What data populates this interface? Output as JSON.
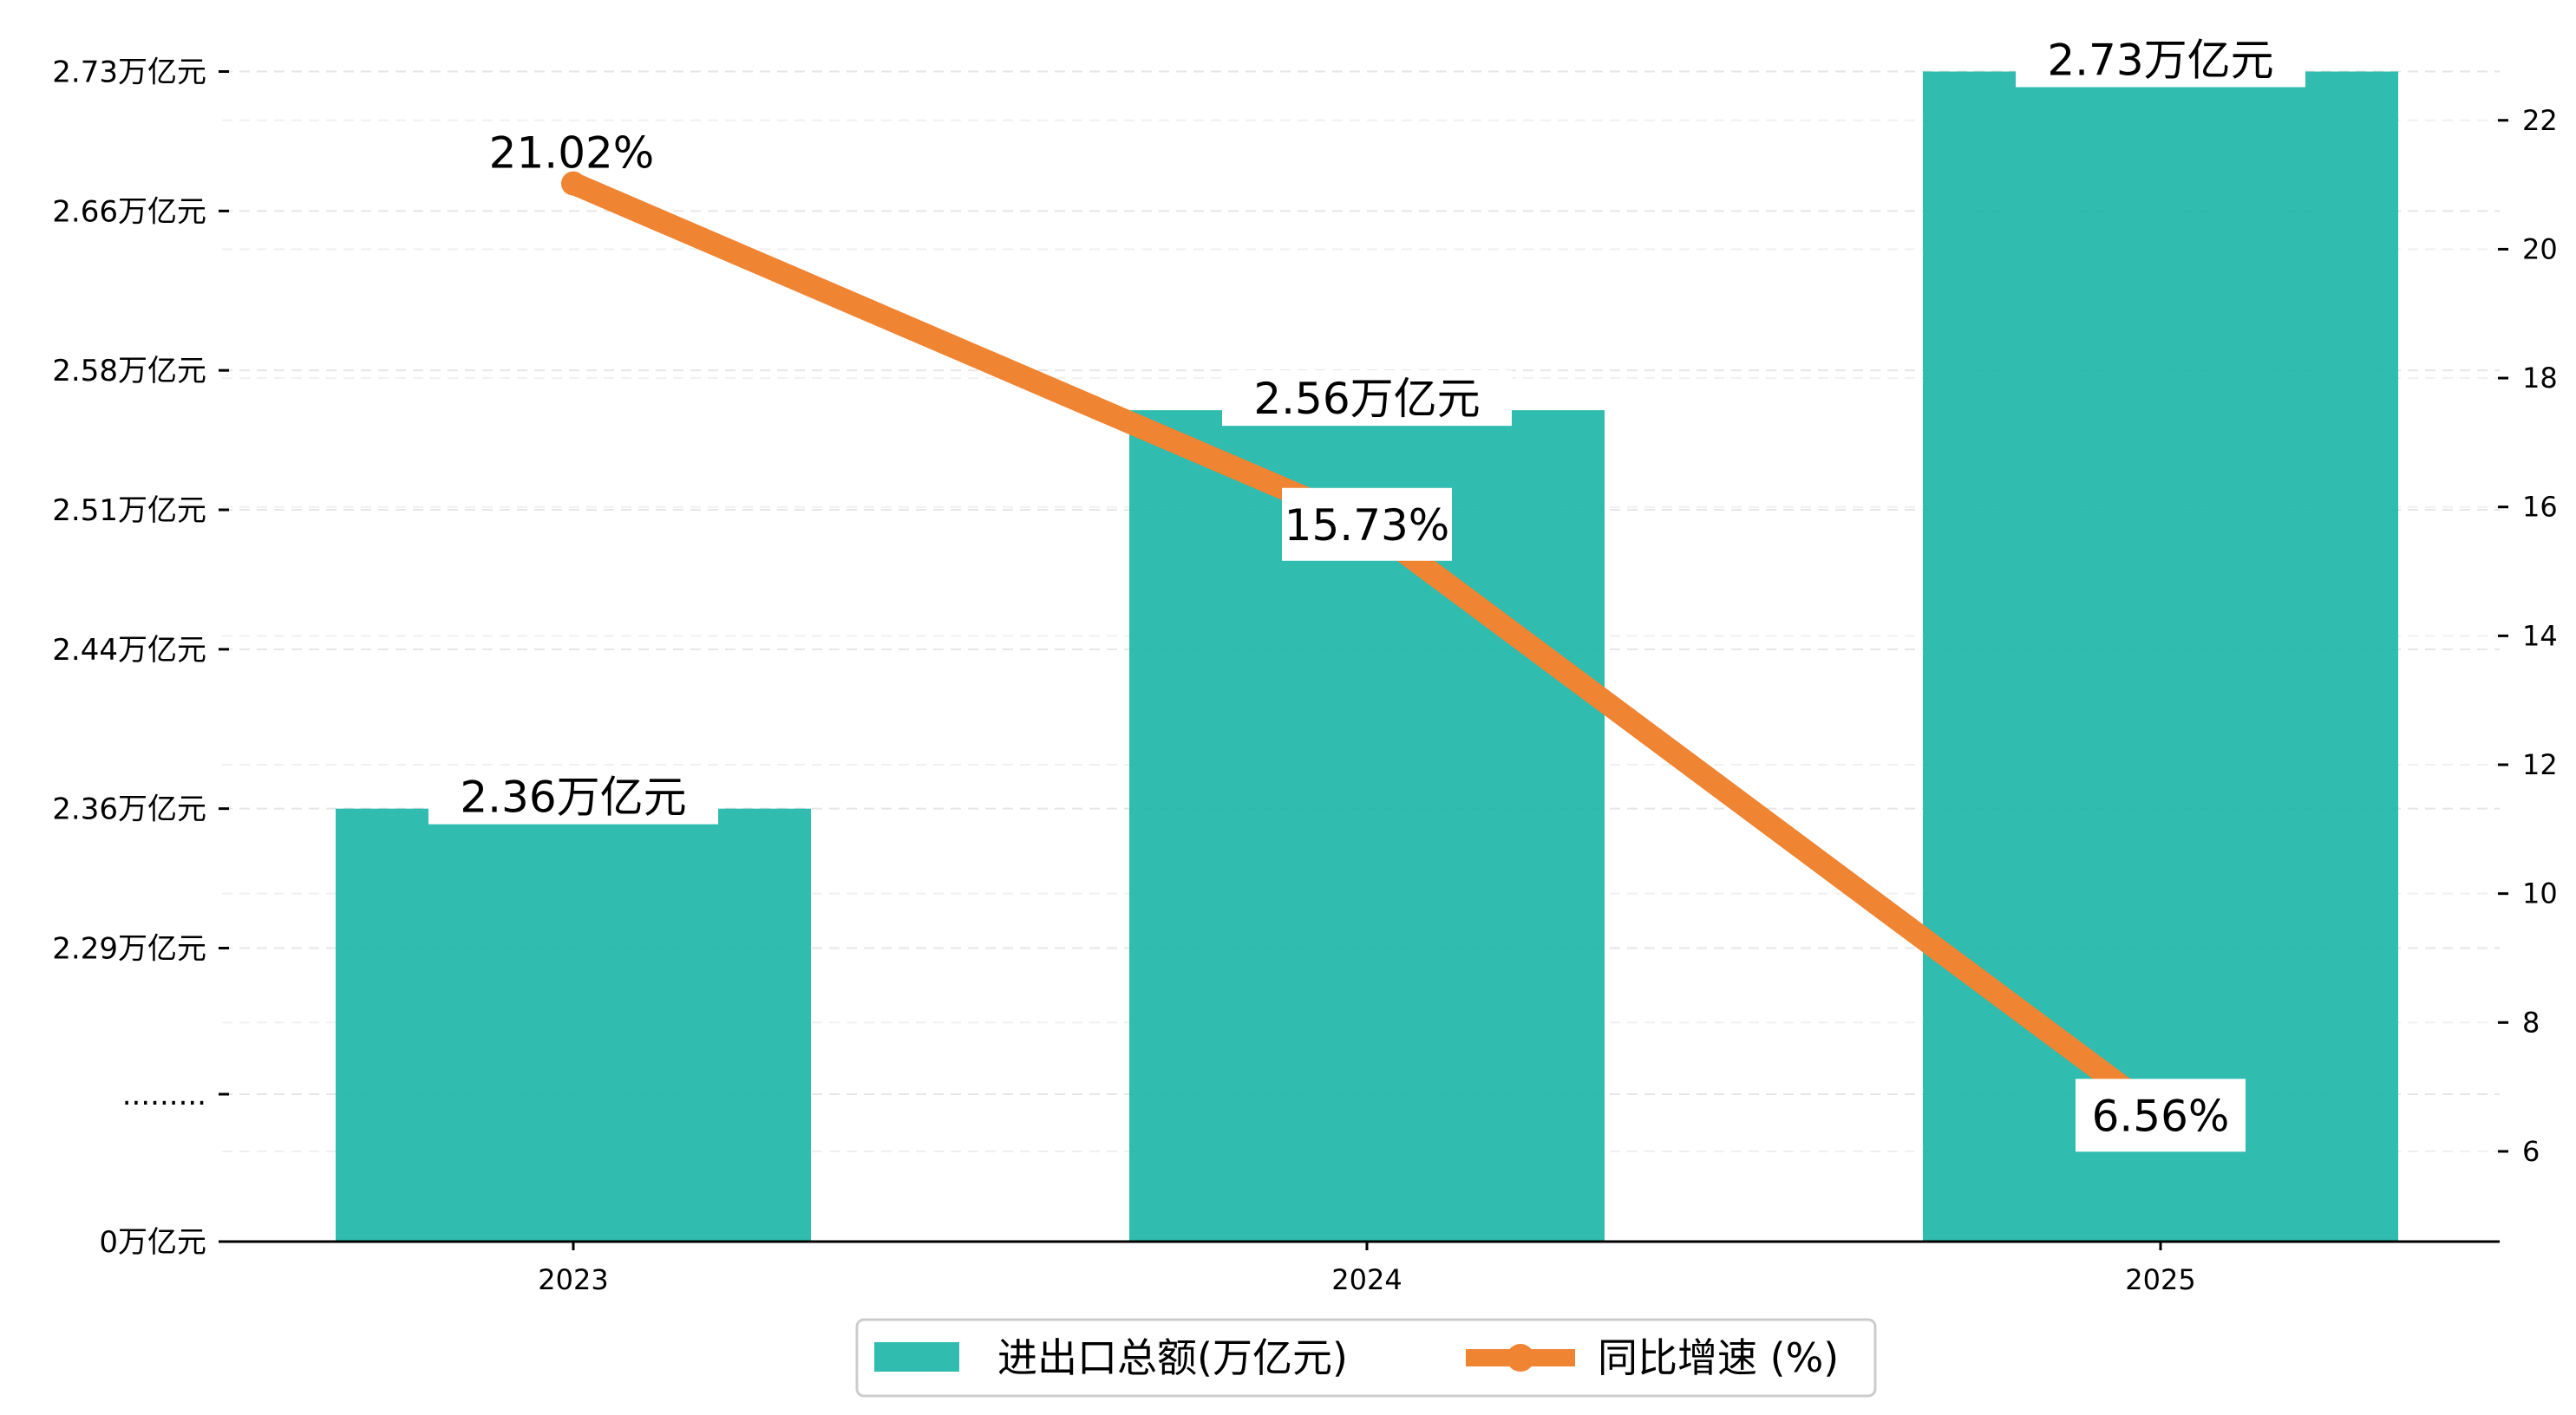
{
  "chart_data": {
    "type": "bar",
    "categories": [
      "2023",
      "2024",
      "2025"
    ],
    "series": [
      {
        "name": "进出口总额(万亿元)",
        "type": "bar",
        "axis": "left",
        "values": [
          2.36,
          2.56,
          2.73
        ],
        "value_labels": [
          "2.36万亿元",
          "2.56万亿元",
          "2.73万亿元"
        ],
        "color": "#1ab5a5"
      },
      {
        "name": "同比增速 (%)",
        "type": "line",
        "axis": "right",
        "values": [
          21.02,
          15.73,
          6.56
        ],
        "value_labels": [
          "21.02%",
          "15.73%",
          "6.56%"
        ],
        "color": "#ef8433"
      }
    ],
    "left_axis": {
      "broken": true,
      "ticks": [
        {
          "value": 0,
          "label": "0万亿元"
        },
        {
          "value": null,
          "label": "........."
        },
        {
          "value": 2.29,
          "label": "2.29万亿元"
        },
        {
          "value": 2.36,
          "label": "2.36万亿元"
        },
        {
          "value": 2.44,
          "label": "2.44万亿元"
        },
        {
          "value": 2.51,
          "label": "2.51万亿元"
        },
        {
          "value": 2.58,
          "label": "2.58万亿元"
        },
        {
          "value": 2.66,
          "label": "2.66万亿元"
        },
        {
          "value": 2.73,
          "label": "2.73万亿元"
        }
      ]
    },
    "right_axis": {
      "ylim": [
        4.6,
        23.1
      ],
      "ticks": [
        6,
        8,
        10,
        12,
        14,
        16,
        18,
        20,
        22
      ]
    },
    "grid": true,
    "legend_position": "bottom-center"
  }
}
